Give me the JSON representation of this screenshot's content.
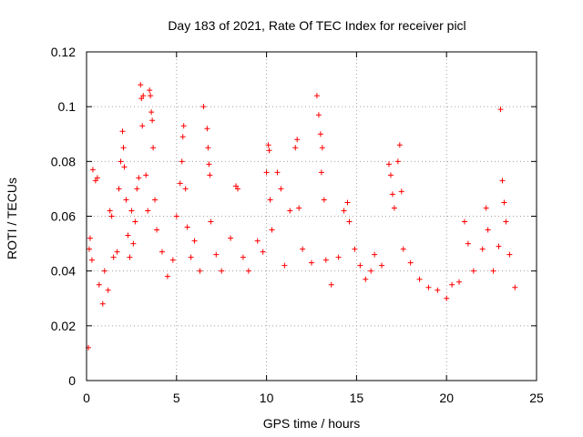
{
  "chart_data": {
    "type": "scatter",
    "title": "Day 183 of 2021, Rate Of TEC Index for receiver picl",
    "xlabel": "GPS time / hours",
    "ylabel": "ROTI / TECUs",
    "xlim": [
      0,
      25
    ],
    "ylim": [
      0,
      0.12
    ],
    "xticks": [
      "0",
      "5",
      "10",
      "15",
      "20",
      "25"
    ],
    "yticks": [
      "0",
      "0.02",
      "0.04",
      "0.06",
      "0.08",
      "0.1",
      "0.12"
    ],
    "grid": true,
    "marker": "plus",
    "color": "#ff0000",
    "series": [
      {
        "points": [
          [
            0.1,
            0.012
          ],
          [
            0.15,
            0.048
          ],
          [
            0.2,
            0.052
          ],
          [
            0.3,
            0.044
          ],
          [
            0.35,
            0.077
          ],
          [
            0.5,
            0.073
          ],
          [
            0.6,
            0.074
          ],
          [
            0.7,
            0.035
          ],
          [
            0.9,
            0.028
          ],
          [
            1.0,
            0.04
          ],
          [
            1.2,
            0.033
          ],
          [
            1.3,
            0.062
          ],
          [
            1.4,
            0.06
          ],
          [
            1.5,
            0.045
          ],
          [
            1.7,
            0.047
          ],
          [
            1.8,
            0.07
          ],
          [
            1.9,
            0.08
          ],
          [
            2.0,
            0.091
          ],
          [
            2.05,
            0.085
          ],
          [
            2.1,
            0.078
          ],
          [
            2.2,
            0.066
          ],
          [
            2.3,
            0.053
          ],
          [
            2.4,
            0.045
          ],
          [
            2.5,
            0.062
          ],
          [
            2.6,
            0.05
          ],
          [
            2.7,
            0.058
          ],
          [
            2.8,
            0.07
          ],
          [
            2.9,
            0.074
          ],
          [
            3.0,
            0.108
          ],
          [
            3.05,
            0.103
          ],
          [
            3.1,
            0.093
          ],
          [
            3.15,
            0.104
          ],
          [
            3.3,
            0.075
          ],
          [
            3.4,
            0.062
          ],
          [
            3.5,
            0.106
          ],
          [
            3.55,
            0.104
          ],
          [
            3.6,
            0.098
          ],
          [
            3.65,
            0.095
          ],
          [
            3.7,
            0.085
          ],
          [
            3.8,
            0.066
          ],
          [
            3.9,
            0.055
          ],
          [
            4.2,
            0.047
          ],
          [
            4.5,
            0.038
          ],
          [
            4.8,
            0.044
          ],
          [
            5.0,
            0.06
          ],
          [
            5.2,
            0.072
          ],
          [
            5.3,
            0.08
          ],
          [
            5.35,
            0.089
          ],
          [
            5.4,
            0.093
          ],
          [
            5.5,
            0.07
          ],
          [
            5.6,
            0.056
          ],
          [
            5.8,
            0.045
          ],
          [
            6.0,
            0.051
          ],
          [
            6.3,
            0.04
          ],
          [
            6.5,
            0.1
          ],
          [
            6.7,
            0.092
          ],
          [
            6.75,
            0.085
          ],
          [
            6.8,
            0.079
          ],
          [
            6.85,
            0.075
          ],
          [
            6.9,
            0.058
          ],
          [
            7.2,
            0.046
          ],
          [
            7.5,
            0.04
          ],
          [
            8.0,
            0.052
          ],
          [
            8.3,
            0.071
          ],
          [
            8.4,
            0.07
          ],
          [
            8.7,
            0.045
          ],
          [
            9.0,
            0.04
          ],
          [
            9.5,
            0.051
          ],
          [
            9.8,
            0.047
          ],
          [
            10.0,
            0.076
          ],
          [
            10.1,
            0.086
          ],
          [
            10.15,
            0.084
          ],
          [
            10.2,
            0.066
          ],
          [
            10.3,
            0.055
          ],
          [
            10.6,
            0.076
          ],
          [
            10.8,
            0.07
          ],
          [
            11.0,
            0.042
          ],
          [
            11.3,
            0.062
          ],
          [
            11.6,
            0.085
          ],
          [
            11.7,
            0.088
          ],
          [
            11.8,
            0.063
          ],
          [
            12.0,
            0.048
          ],
          [
            12.5,
            0.043
          ],
          [
            12.8,
            0.104
          ],
          [
            12.9,
            0.097
          ],
          [
            13.0,
            0.09
          ],
          [
            13.1,
            0.085
          ],
          [
            13.05,
            0.076
          ],
          [
            13.2,
            0.066
          ],
          [
            13.3,
            0.044
          ],
          [
            13.6,
            0.035
          ],
          [
            14.0,
            0.045
          ],
          [
            14.3,
            0.062
          ],
          [
            14.5,
            0.065
          ],
          [
            14.6,
            0.058
          ],
          [
            14.9,
            0.048
          ],
          [
            15.2,
            0.042
          ],
          [
            15.5,
            0.037
          ],
          [
            15.8,
            0.04
          ],
          [
            16.0,
            0.046
          ],
          [
            16.4,
            0.042
          ],
          [
            16.8,
            0.079
          ],
          [
            16.9,
            0.075
          ],
          [
            17.0,
            0.068
          ],
          [
            17.1,
            0.063
          ],
          [
            17.3,
            0.08
          ],
          [
            17.4,
            0.086
          ],
          [
            17.5,
            0.069
          ],
          [
            17.6,
            0.048
          ],
          [
            18.0,
            0.043
          ],
          [
            18.5,
            0.037
          ],
          [
            19.0,
            0.034
          ],
          [
            19.5,
            0.033
          ],
          [
            20.0,
            0.03
          ],
          [
            20.3,
            0.035
          ],
          [
            20.7,
            0.036
          ],
          [
            21.0,
            0.058
          ],
          [
            21.2,
            0.05
          ],
          [
            21.5,
            0.04
          ],
          [
            22.0,
            0.048
          ],
          [
            22.2,
            0.063
          ],
          [
            22.3,
            0.055
          ],
          [
            22.6,
            0.04
          ],
          [
            22.9,
            0.049
          ],
          [
            23.0,
            0.099
          ],
          [
            23.1,
            0.073
          ],
          [
            23.2,
            0.065
          ],
          [
            23.3,
            0.058
          ],
          [
            23.5,
            0.046
          ],
          [
            23.8,
            0.034
          ]
        ]
      }
    ]
  }
}
